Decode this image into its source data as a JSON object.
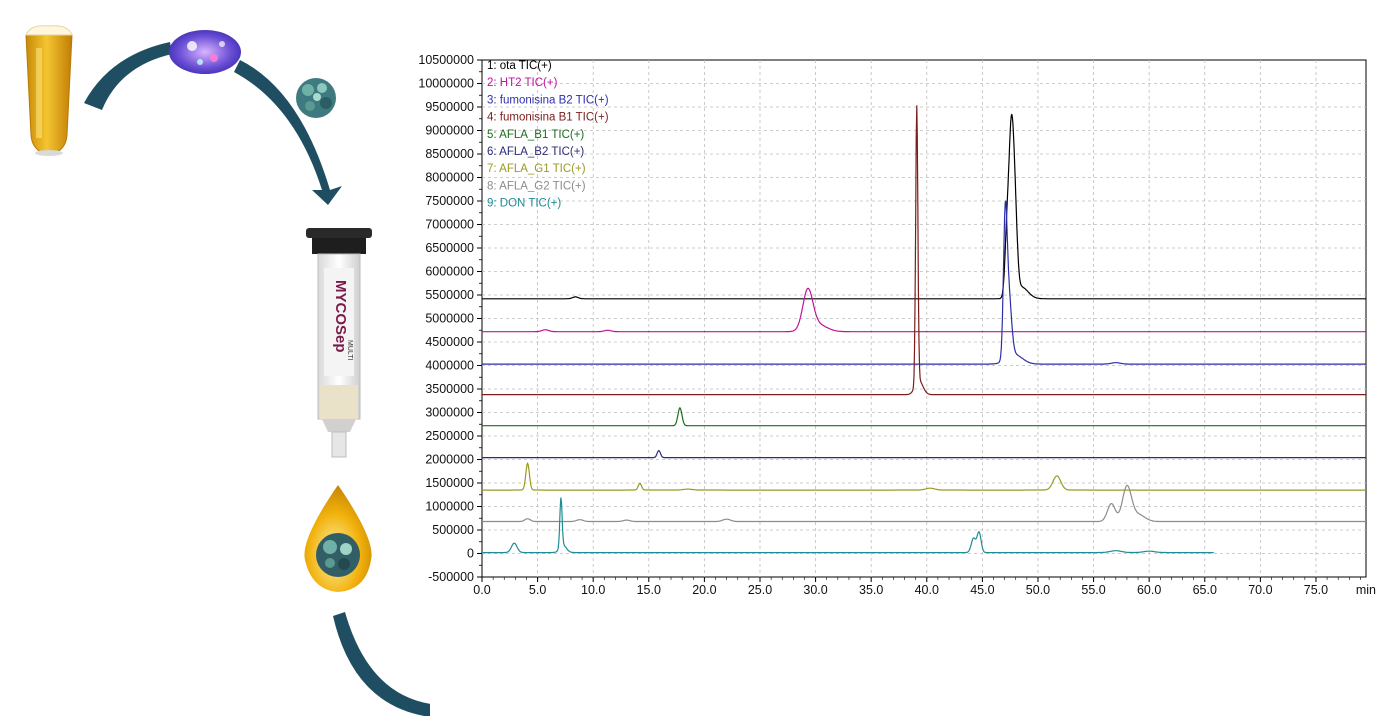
{
  "chart_data": {
    "type": "line",
    "xlabel": "",
    "ylabel": "",
    "x_unit": "min",
    "xlim": [
      0,
      79.5
    ],
    "ylim": [
      -500000,
      10500000
    ],
    "x_ticks": [
      "0.0",
      "5.0",
      "10.0",
      "15.0",
      "20.0",
      "25.0",
      "30.0",
      "35.0",
      "40.0",
      "45.0",
      "50.0",
      "55.0",
      "60.0",
      "65.0",
      "70.0",
      "75.0"
    ],
    "y_ticks": [
      "10500000",
      "10000000",
      "9500000",
      "9000000",
      "8500000",
      "8000000",
      "7500000",
      "7000000",
      "6500000",
      "6000000",
      "5500000",
      "5000000",
      "4500000",
      "4000000",
      "3500000",
      "3000000",
      "2500000",
      "2000000",
      "1500000",
      "1000000",
      "500000",
      "0",
      "-500000"
    ],
    "grid": true,
    "legend_position": "top-left",
    "series": [
      {
        "name": "1: ota TIC(+)",
        "color": "#000000",
        "baseline": 5420000,
        "end": 79.5,
        "peaks": [
          [
            8.4,
            40000,
            0.25
          ],
          [
            47.6,
            3400000,
            0.22
          ],
          [
            47.2,
            1200000,
            0.18
          ],
          [
            47.95,
            1450000,
            0.2
          ],
          [
            48.5,
            250000,
            0.6
          ]
        ]
      },
      {
        "name": "2: HT2 TIC(+)",
        "color": "#c0139a",
        "baseline": 4720000,
        "end": 79.5,
        "peaks": [
          [
            5.7,
            40000,
            0.3
          ],
          [
            11.3,
            30000,
            0.3
          ],
          [
            29.3,
            840000,
            0.45
          ],
          [
            30.2,
            150000,
            0.8
          ]
        ]
      },
      {
        "name": "3: fumonisina B2 TIC(+)",
        "color": "#2d2fa6",
        "baseline": 4030000,
        "end": 79.5,
        "peaks": [
          [
            47.05,
            2650000,
            0.16
          ],
          [
            47.35,
            1400000,
            0.25
          ],
          [
            47.9,
            200000,
            0.7
          ],
          [
            57.0,
            30000,
            0.4
          ]
        ]
      },
      {
        "name": "4: fumonisina B1 TIC(+)",
        "color": "#7a1d1d",
        "baseline": 3380000,
        "end": 79.5,
        "peaks": [
          [
            39.1,
            5900000,
            0.1
          ],
          [
            39.3,
            300000,
            0.35
          ]
        ]
      },
      {
        "name": "5: AFLA_B1 TIC(+)",
        "color": "#1b6e1b",
        "baseline": 2720000,
        "end": 79.5,
        "peaks": [
          [
            17.8,
            380000,
            0.18
          ]
        ]
      },
      {
        "name": "6: AFLA_B2 TIC(+)",
        "color": "#2b2b7a",
        "baseline": 2040000,
        "end": 79.5,
        "peaks": [
          [
            15.9,
            150000,
            0.15
          ]
        ]
      },
      {
        "name": "7: AFLA_G1 TIC(+)",
        "color": "#9a9a22",
        "baseline": 1350000,
        "end": 79.5,
        "peaks": [
          [
            4.1,
            570000,
            0.16
          ],
          [
            14.2,
            140000,
            0.15
          ],
          [
            18.5,
            20000,
            0.4
          ],
          [
            40.3,
            40000,
            0.4
          ],
          [
            51.7,
            300000,
            0.35
          ]
        ]
      },
      {
        "name": "8: AFLA_G2 TIC(+)",
        "color": "#8c8c8c",
        "baseline": 680000,
        "end": 79.5,
        "peaks": [
          [
            4.1,
            60000,
            0.25
          ],
          [
            8.8,
            40000,
            0.3
          ],
          [
            13.0,
            30000,
            0.3
          ],
          [
            22.0,
            50000,
            0.35
          ],
          [
            56.6,
            380000,
            0.35
          ],
          [
            58.0,
            730000,
            0.4
          ],
          [
            59.0,
            150000,
            0.6
          ]
        ]
      },
      {
        "name": "9: DON TIC(+)",
        "color": "#1e8c96",
        "baseline": 20000,
        "end": 65.8,
        "peaks": [
          [
            2.9,
            200000,
            0.25
          ],
          [
            7.1,
            1050000,
            0.1
          ],
          [
            7.3,
            150000,
            0.3
          ],
          [
            44.2,
            300000,
            0.2
          ],
          [
            44.7,
            430000,
            0.18
          ],
          [
            57.0,
            40000,
            0.5
          ],
          [
            60.0,
            30000,
            0.5
          ]
        ]
      }
    ]
  },
  "colors": {
    "arrow": "#1f4e62",
    "grid": "#bdbdbd"
  },
  "icons": {
    "beer": "beer-glass-icon",
    "nanoparticle_cloud": "nanoparticle-cloud-icon",
    "nanoparticle_cluster": "nanoparticle-cluster-icon",
    "cartridge": "immunoaffinity-cartridge-icon",
    "droplet": "golden-droplet-icon"
  },
  "cartridge": {
    "brand_text": "MYCOSep",
    "small_text": "MULTI"
  }
}
